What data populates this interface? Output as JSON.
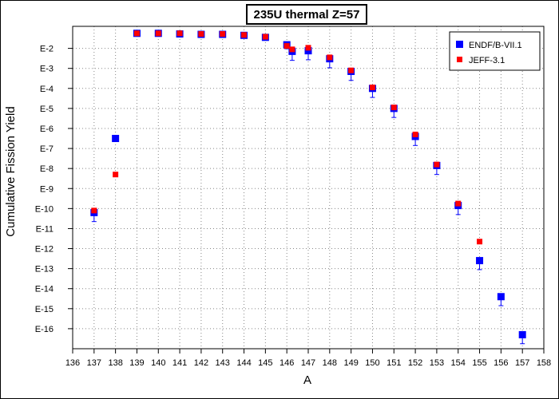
{
  "chart_data": {
    "type": "scatter",
    "title": "235U thermal Z=57",
    "xlabel": "A",
    "ylabel": "Cumulative Fission Yield",
    "xlim": [
      136,
      158
    ],
    "ylim": [
      -17,
      -0.9
    ],
    "y_scale": "log10",
    "grid": true,
    "legend_position": "top-right",
    "x_ticks": [
      136,
      137,
      138,
      139,
      140,
      141,
      142,
      143,
      144,
      145,
      146,
      147,
      148,
      149,
      150,
      151,
      152,
      153,
      154,
      155,
      156,
      157,
      158
    ],
    "y_ticks": [
      {
        "v": -2,
        "label": "E-2"
      },
      {
        "v": -3,
        "label": "E-3"
      },
      {
        "v": -4,
        "label": "E-4"
      },
      {
        "v": -5,
        "label": "E-5"
      },
      {
        "v": -6,
        "label": "E-6"
      },
      {
        "v": -7,
        "label": "E-7"
      },
      {
        "v": -8,
        "label": "E-8"
      },
      {
        "v": -9,
        "label": "E-9"
      },
      {
        "v": -10,
        "label": "E-10"
      },
      {
        "v": -11,
        "label": "E-11"
      },
      {
        "v": -12,
        "label": "E-12"
      },
      {
        "v": -13,
        "label": "E-13"
      },
      {
        "v": -14,
        "label": "E-14"
      },
      {
        "v": -15,
        "label": "E-15"
      },
      {
        "v": -16,
        "label": "E-16"
      }
    ],
    "series": [
      {
        "name": "ENDF/B-VII.1",
        "color": "#0000ff",
        "marker": "square",
        "points": [
          {
            "x": 137,
            "y": -10.2,
            "err": 0.45
          },
          {
            "x": 138,
            "y": -6.5,
            "err": 0
          },
          {
            "x": 139,
            "y": -1.25,
            "err": 0
          },
          {
            "x": 140,
            "y": -1.25,
            "err": 0
          },
          {
            "x": 141,
            "y": -1.28,
            "err": 0
          },
          {
            "x": 142,
            "y": -1.3,
            "err": 0
          },
          {
            "x": 143,
            "y": -1.3,
            "err": 0
          },
          {
            "x": 144,
            "y": -1.35,
            "err": 0
          },
          {
            "x": 145,
            "y": -1.45,
            "err": 0
          },
          {
            "x": 146,
            "y": -1.82,
            "err": 0.2
          },
          {
            "x": 146.25,
            "y": -2.15,
            "err": 0.45
          },
          {
            "x": 147,
            "y": -2.12,
            "err": 0.45
          },
          {
            "x": 148,
            "y": -2.52,
            "err": 0.45
          },
          {
            "x": 149,
            "y": -3.15,
            "err": 0.45
          },
          {
            "x": 150,
            "y": -4.0,
            "err": 0.45
          },
          {
            "x": 151,
            "y": -5.0,
            "err": 0.45
          },
          {
            "x": 152,
            "y": -6.4,
            "err": 0.45
          },
          {
            "x": 153,
            "y": -7.85,
            "err": 0.45
          },
          {
            "x": 154,
            "y": -9.85,
            "err": 0.45
          },
          {
            "x": 155,
            "y": -12.6,
            "err": 0.45
          },
          {
            "x": 156,
            "y": -14.4,
            "err": 0.45
          },
          {
            "x": 157,
            "y": -16.3,
            "err": 0.45
          }
        ]
      },
      {
        "name": "JEFF-3.1",
        "color": "#ff0000",
        "marker": "square-small",
        "points": [
          {
            "x": 137,
            "y": -10.1
          },
          {
            "x": 138,
            "y": -8.3
          },
          {
            "x": 139,
            "y": -1.25
          },
          {
            "x": 140,
            "y": -1.25
          },
          {
            "x": 141,
            "y": -1.25
          },
          {
            "x": 142,
            "y": -1.28
          },
          {
            "x": 143,
            "y": -1.28
          },
          {
            "x": 144,
            "y": -1.33
          },
          {
            "x": 145,
            "y": -1.42
          },
          {
            "x": 146,
            "y": -1.88
          },
          {
            "x": 146.25,
            "y": -2.05
          },
          {
            "x": 147,
            "y": -1.97
          },
          {
            "x": 148,
            "y": -2.45
          },
          {
            "x": 149,
            "y": -3.1
          },
          {
            "x": 150,
            "y": -3.95
          },
          {
            "x": 151,
            "y": -4.95
          },
          {
            "x": 152,
            "y": -6.3
          },
          {
            "x": 153,
            "y": -7.8
          },
          {
            "x": 154,
            "y": -9.75
          },
          {
            "x": 155,
            "y": -11.65
          }
        ]
      }
    ]
  }
}
